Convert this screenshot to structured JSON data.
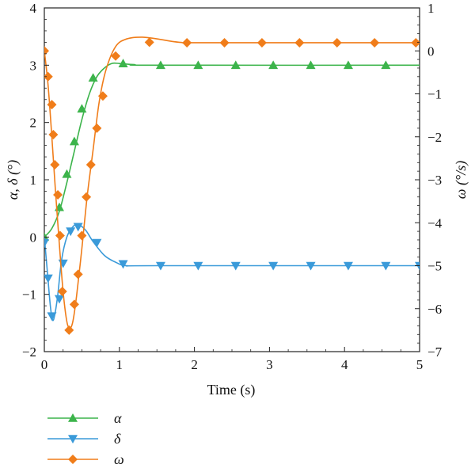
{
  "chart_data": {
    "type": "line",
    "xlabel": "Time (s)",
    "ylabel_left": "α, δ (°)",
    "ylabel_right": "ω (°/s)",
    "xlim": [
      0,
      5
    ],
    "ylim_left": [
      -2,
      4
    ],
    "ylim_right": [
      -7,
      1
    ],
    "x_ticks": [
      "0",
      "1",
      "2",
      "3",
      "4",
      "5"
    ],
    "y_left_ticks": [
      "−2",
      "−1",
      "0",
      "1",
      "2",
      "3",
      "4"
    ],
    "y_right_ticks": [
      "−7",
      "−6",
      "−5",
      "−4",
      "−3",
      "−2",
      "−1",
      "0",
      "1"
    ],
    "grid": false,
    "legend_position": "bottom-left, below plot",
    "series": [
      {
        "name": "α",
        "axis": "left",
        "color": "#3cb44b",
        "marker": "triangle-up",
        "curve": [
          [
            0,
            0
          ],
          [
            0.1,
            0.15
          ],
          [
            0.2,
            0.45
          ],
          [
            0.3,
            0.95
          ],
          [
            0.4,
            1.5
          ],
          [
            0.5,
            2.05
          ],
          [
            0.6,
            2.5
          ],
          [
            0.7,
            2.8
          ],
          [
            0.8,
            2.95
          ],
          [
            0.9,
            3.03
          ],
          [
            1.0,
            3.03
          ],
          [
            1.2,
            3.01
          ],
          [
            1.5,
            3.0
          ],
          [
            5,
            3.0
          ]
        ],
        "markers": [
          [
            0,
            0
          ],
          [
            0.2,
            0.52
          ],
          [
            0.3,
            1.1
          ],
          [
            0.4,
            1.67
          ],
          [
            0.5,
            2.24
          ],
          [
            0.65,
            2.78
          ],
          [
            1.05,
            3.03
          ],
          [
            1.55,
            3.0
          ],
          [
            2.05,
            3.0
          ],
          [
            2.55,
            3.0
          ],
          [
            3.05,
            3.0
          ],
          [
            3.55,
            3.0
          ],
          [
            4.05,
            3.0
          ],
          [
            4.55,
            3.0
          ]
        ]
      },
      {
        "name": "δ",
        "axis": "left",
        "color": "#3a9ad9",
        "marker": "triangle-down",
        "curve": [
          [
            0,
            0
          ],
          [
            0.04,
            -0.6
          ],
          [
            0.08,
            -1.2
          ],
          [
            0.11,
            -1.45
          ],
          [
            0.14,
            -1.35
          ],
          [
            0.18,
            -1.0
          ],
          [
            0.23,
            -0.4
          ],
          [
            0.3,
            0.0
          ],
          [
            0.38,
            0.18
          ],
          [
            0.45,
            0.22
          ],
          [
            0.55,
            0.12
          ],
          [
            0.65,
            -0.08
          ],
          [
            0.8,
            -0.32
          ],
          [
            0.95,
            -0.44
          ],
          [
            1.1,
            -0.5
          ],
          [
            1.5,
            -0.5
          ],
          [
            5,
            -0.5
          ]
        ],
        "markers": [
          [
            0,
            -0.1
          ],
          [
            0.05,
            -0.72
          ],
          [
            0.1,
            -1.38
          ],
          [
            0.2,
            -1.08
          ],
          [
            0.25,
            -0.46
          ],
          [
            0.35,
            0.1
          ],
          [
            0.45,
            0.18
          ],
          [
            0.7,
            -0.1
          ],
          [
            1.05,
            -0.47
          ],
          [
            1.55,
            -0.5
          ],
          [
            2.05,
            -0.5
          ],
          [
            2.55,
            -0.5
          ],
          [
            3.05,
            -0.5
          ],
          [
            3.55,
            -0.5
          ],
          [
            4.05,
            -0.5
          ],
          [
            4.55,
            -0.5
          ],
          [
            5.0,
            -0.5
          ]
        ]
      },
      {
        "name": "ω",
        "axis": "right",
        "color": "#f07d1a",
        "marker": "diamond",
        "curve": [
          [
            0,
            0
          ],
          [
            0.05,
            -0.8
          ],
          [
            0.1,
            -2.0
          ],
          [
            0.15,
            -3.3
          ],
          [
            0.2,
            -4.5
          ],
          [
            0.25,
            -5.6
          ],
          [
            0.3,
            -6.3
          ],
          [
            0.34,
            -6.45
          ],
          [
            0.38,
            -6.3
          ],
          [
            0.43,
            -5.7
          ],
          [
            0.5,
            -4.6
          ],
          [
            0.57,
            -3.4
          ],
          [
            0.65,
            -2.3
          ],
          [
            0.73,
            -1.2
          ],
          [
            0.82,
            -0.45
          ],
          [
            0.95,
            0.1
          ],
          [
            1.1,
            0.28
          ],
          [
            1.3,
            0.32
          ],
          [
            1.5,
            0.28
          ],
          [
            1.8,
            0.2
          ],
          [
            2.2,
            0.19
          ],
          [
            5,
            0.19
          ]
        ],
        "markers": [
          [
            0,
            0
          ],
          [
            0.05,
            -0.6
          ],
          [
            0.1,
            -1.25
          ],
          [
            0.12,
            -1.95
          ],
          [
            0.14,
            -2.65
          ],
          [
            0.18,
            -3.35
          ],
          [
            0.21,
            -4.3
          ],
          [
            0.24,
            -5.6
          ],
          [
            0.33,
            -6.5
          ],
          [
            0.4,
            -5.9
          ],
          [
            0.45,
            -5.2
          ],
          [
            0.5,
            -4.3
          ],
          [
            0.56,
            -3.4
          ],
          [
            0.62,
            -2.65
          ],
          [
            0.7,
            -1.8
          ],
          [
            0.78,
            -1.05
          ],
          [
            0.95,
            -0.12
          ],
          [
            1.4,
            0.2
          ],
          [
            1.9,
            0.19
          ],
          [
            2.4,
            0.19
          ],
          [
            2.9,
            0.19
          ],
          [
            3.4,
            0.19
          ],
          [
            3.9,
            0.19
          ],
          [
            4.4,
            0.19
          ],
          [
            4.95,
            0.19
          ]
        ]
      }
    ]
  }
}
